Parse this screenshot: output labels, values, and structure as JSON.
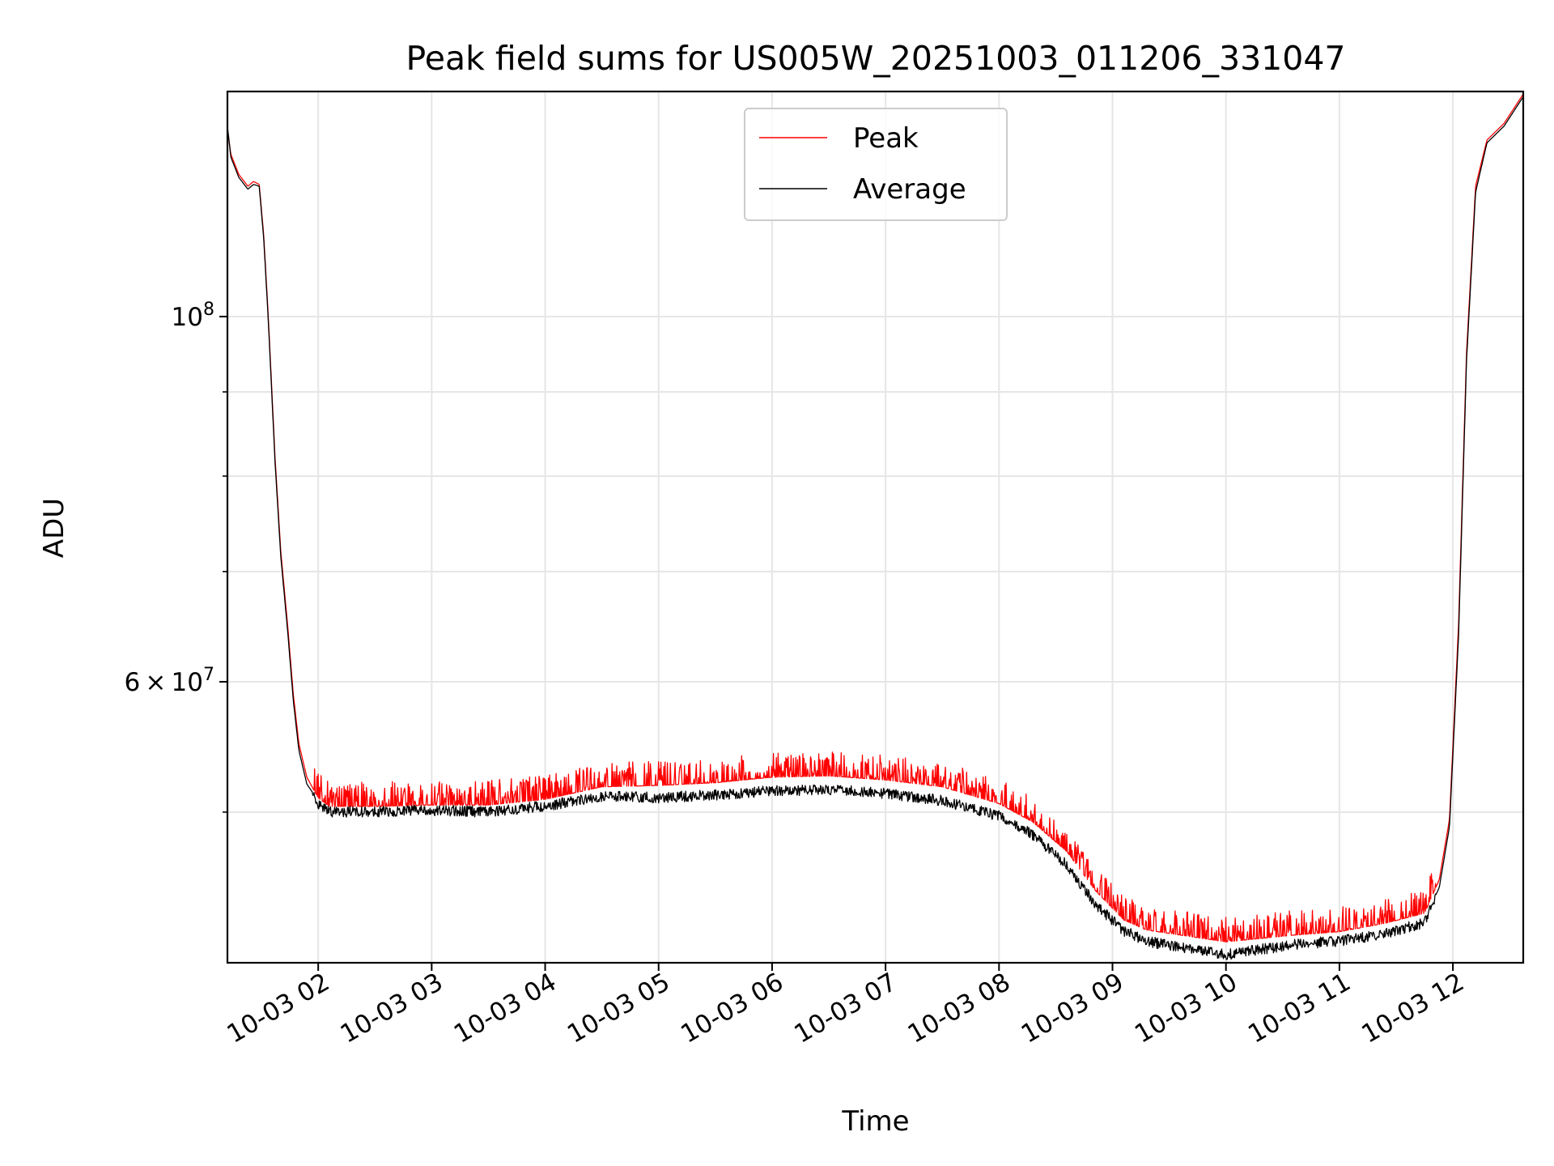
{
  "chart_data": {
    "type": "line",
    "title": "Peak field sums for US005W_20251003_011206_331047",
    "xlabel": "Time",
    "ylabel": "ADU",
    "yscale": "log",
    "x_unit": "hours since 10-03 00:00",
    "xlim": [
      1.2,
      12.62
    ],
    "ylim": [
      40500000,
      137000000
    ],
    "grid": true,
    "legend_position": "top-center",
    "x_ticks": [
      {
        "value": 2,
        "label": "10-03 02"
      },
      {
        "value": 3,
        "label": "10-03 03"
      },
      {
        "value": 4,
        "label": "10-03 04"
      },
      {
        "value": 5,
        "label": "10-03 05"
      },
      {
        "value": 6,
        "label": "10-03 06"
      },
      {
        "value": 7,
        "label": "10-03 07"
      },
      {
        "value": 8,
        "label": "10-03 08"
      },
      {
        "value": 9,
        "label": "10-03 09"
      },
      {
        "value": 10,
        "label": "10-03 10"
      },
      {
        "value": 11,
        "label": "10-03 11"
      },
      {
        "value": 12,
        "label": "10-03 12"
      }
    ],
    "y_major_ticks": [
      {
        "value": 100000000,
        "base": "10",
        "exp": "8"
      },
      {
        "value": 60000000,
        "mantissa": "6",
        "base": "10",
        "exp": "7"
      }
    ],
    "y_minor_ticks": [
      50000000,
      70000000,
      80000000,
      90000000
    ],
    "series": [
      {
        "name": "Peak",
        "color": "#ff0000",
        "noise_amplitude_frac": 0.035,
        "points": [
          [
            1.2,
            130000000
          ],
          [
            1.23,
            125500000
          ],
          [
            1.3,
            122000000
          ],
          [
            1.38,
            120000000
          ],
          [
            1.43,
            120800000
          ],
          [
            1.48,
            120300000
          ],
          [
            1.52,
            112000000
          ],
          [
            1.56,
            100000000
          ],
          [
            1.62,
            82000000
          ],
          [
            1.67,
            72000000
          ],
          [
            1.73,
            65000000
          ],
          [
            1.78,
            59000000
          ],
          [
            1.83,
            55000000
          ],
          [
            1.9,
            52500000
          ],
          [
            2.0,
            51000000
          ],
          [
            2.1,
            50400000
          ],
          [
            2.5,
            50400000
          ],
          [
            3.0,
            50500000
          ],
          [
            3.5,
            50500000
          ],
          [
            4.0,
            50900000
          ],
          [
            4.5,
            51800000
          ],
          [
            5.0,
            51900000
          ],
          [
            5.5,
            52100000
          ],
          [
            6.0,
            52500000
          ],
          [
            6.5,
            52600000
          ],
          [
            7.0,
            52300000
          ],
          [
            7.5,
            51800000
          ],
          [
            8.0,
            50600000
          ],
          [
            8.3,
            49300000
          ],
          [
            8.6,
            47300000
          ],
          [
            8.85,
            44800000
          ],
          [
            9.1,
            43000000
          ],
          [
            9.3,
            42400000
          ],
          [
            9.6,
            42100000
          ],
          [
            10.0,
            41700000
          ],
          [
            10.3,
            41900000
          ],
          [
            10.6,
            42100000
          ],
          [
            11.0,
            42300000
          ],
          [
            11.4,
            42800000
          ],
          [
            11.75,
            43400000
          ],
          [
            11.88,
            45500000
          ],
          [
            11.97,
            49500000
          ],
          [
            12.05,
            65000000
          ],
          [
            12.12,
            95000000
          ],
          [
            12.2,
            120000000
          ],
          [
            12.3,
            128000000
          ],
          [
            12.45,
            131000000
          ],
          [
            12.62,
            136500000
          ]
        ]
      },
      {
        "name": "Average",
        "color": "#000000",
        "noise_amplitude_frac": 0.015,
        "points": [
          [
            1.2,
            130500000
          ],
          [
            1.23,
            125000000
          ],
          [
            1.3,
            121500000
          ],
          [
            1.38,
            119500000
          ],
          [
            1.43,
            120300000
          ],
          [
            1.48,
            120000000
          ],
          [
            1.52,
            111500000
          ],
          [
            1.56,
            99500000
          ],
          [
            1.62,
            81500000
          ],
          [
            1.67,
            71500000
          ],
          [
            1.73,
            64500000
          ],
          [
            1.78,
            58500000
          ],
          [
            1.83,
            54500000
          ],
          [
            1.9,
            52000000
          ],
          [
            2.0,
            50800000
          ],
          [
            2.1,
            50200000
          ],
          [
            2.5,
            50200000
          ],
          [
            3.0,
            50300000
          ],
          [
            3.5,
            50200000
          ],
          [
            4.0,
            50600000
          ],
          [
            4.5,
            51300000
          ],
          [
            5.0,
            51200000
          ],
          [
            5.5,
            51400000
          ],
          [
            6.0,
            51700000
          ],
          [
            6.5,
            51800000
          ],
          [
            7.0,
            51500000
          ],
          [
            7.5,
            51000000
          ],
          [
            8.0,
            49900000
          ],
          [
            8.3,
            48600000
          ],
          [
            8.6,
            46600000
          ],
          [
            8.85,
            44100000
          ],
          [
            9.1,
            42500000
          ],
          [
            9.3,
            41900000
          ],
          [
            9.6,
            41500000
          ],
          [
            10.0,
            41100000
          ],
          [
            10.3,
            41400000
          ],
          [
            10.6,
            41700000
          ],
          [
            11.0,
            41900000
          ],
          [
            11.4,
            42300000
          ],
          [
            11.75,
            43000000
          ],
          [
            11.88,
            45000000
          ],
          [
            11.97,
            49000000
          ],
          [
            12.05,
            64000000
          ],
          [
            12.12,
            94000000
          ],
          [
            12.2,
            119000000
          ],
          [
            12.3,
            127500000
          ],
          [
            12.45,
            130500000
          ],
          [
            12.62,
            136000000
          ]
        ]
      }
    ]
  }
}
